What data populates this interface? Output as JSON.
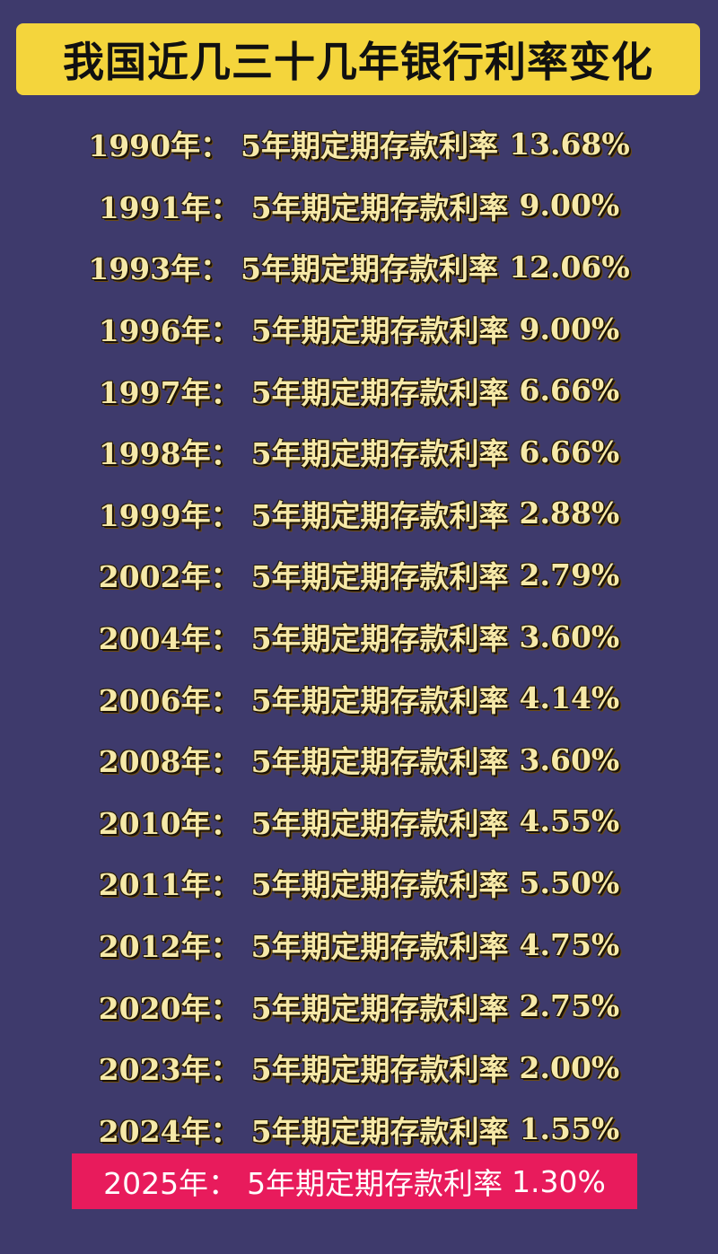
{
  "title": "我国近几三十几年银行利率变化",
  "label": "5年期定期存款利率",
  "colors": {
    "background": "#3e3a6c",
    "title_box": "#f4d53c",
    "row_text": "#f6e9a8",
    "highlight": "#e81b5c"
  },
  "rows": [
    {
      "year": "1990年：",
      "rate": "13.68%"
    },
    {
      "year": "1991年：",
      "rate": "9.00%"
    },
    {
      "year": "1993年：",
      "rate": "12.06%"
    },
    {
      "year": "1996年：",
      "rate": "9.00%"
    },
    {
      "year": "1997年：",
      "rate": "6.66%"
    },
    {
      "year": "1998年：",
      "rate": "6.66%"
    },
    {
      "year": "1999年：",
      "rate": "2.88%"
    },
    {
      "year": "2002年：",
      "rate": "2.79%"
    },
    {
      "year": "2004年：",
      "rate": "3.60%"
    },
    {
      "year": "2006年：",
      "rate": "4.14%"
    },
    {
      "year": "2008年：",
      "rate": "3.60%"
    },
    {
      "year": "2010年：",
      "rate": "4.55%"
    },
    {
      "year": "2011年：",
      "rate": "5.50%"
    },
    {
      "year": "2012年：",
      "rate": "4.75%"
    },
    {
      "year": "2020年：",
      "rate": "2.75%"
    },
    {
      "year": "2023年：",
      "rate": "2.00%"
    },
    {
      "year": "2024年：",
      "rate": "1.55%"
    }
  ],
  "highlight": {
    "year": "2025年：",
    "rate": "1.30%"
  }
}
